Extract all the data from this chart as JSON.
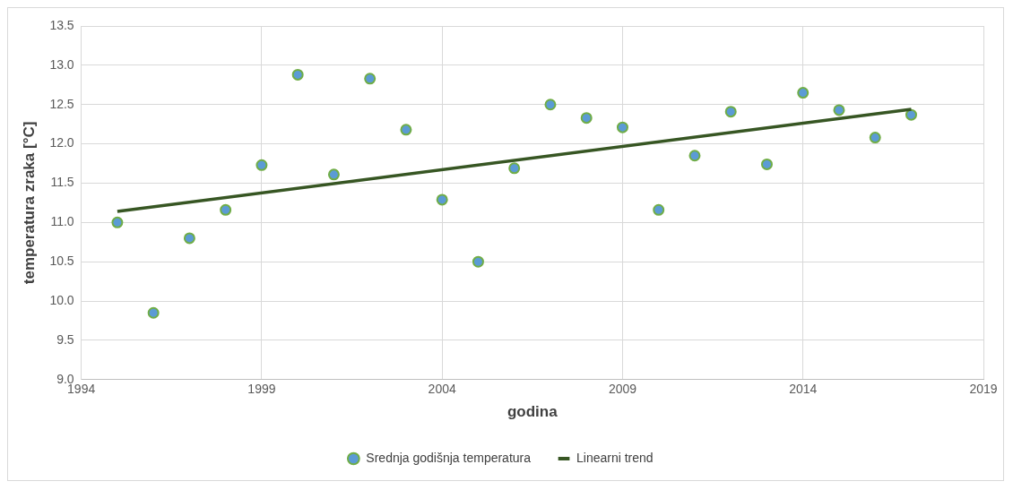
{
  "chart_data": {
    "type": "scatter",
    "xlabel": "godina",
    "ylabel": "temperatura zraka [°C]",
    "xlim": [
      1994,
      2019
    ],
    "xticks": [
      1994,
      1999,
      2004,
      2009,
      2014,
      2019
    ],
    "ylim": [
      9.0,
      13.5
    ],
    "yticks": [
      {
        "value": 9,
        "label": "9.0"
      },
      {
        "value": 9.5,
        "label": "9.5"
      },
      {
        "value": 10,
        "label": "10.0"
      },
      {
        "value": 10.5,
        "label": "10.5"
      },
      {
        "value": 11,
        "label": "11.0"
      },
      {
        "value": 11.5,
        "label": "11.5"
      },
      {
        "value": 12,
        "label": "12.0"
      },
      {
        "value": 12.5,
        "label": "12.5"
      },
      {
        "value": 13,
        "label": "13.0"
      },
      {
        "value": 13.5,
        "label": "13.5"
      }
    ],
    "grid": true,
    "legend": "bottom",
    "series": [
      {
        "name": "Srednja godišnja temperatura",
        "marker": "circle",
        "color": "#70ad47",
        "x": [
          1995,
          1996,
          1997,
          1998,
          1999,
          2000,
          2001,
          2002,
          2003,
          2004,
          2005,
          2006,
          2007,
          2008,
          2009,
          2010,
          2011,
          2012,
          2013,
          2014,
          2015,
          2016,
          2017
        ],
        "values": [
          11.0,
          9.85,
          10.8,
          11.16,
          11.73,
          12.88,
          11.61,
          12.83,
          12.18,
          11.29,
          10.5,
          11.69,
          12.5,
          12.33,
          12.21,
          11.16,
          11.85,
          12.41,
          11.74,
          12.65,
          12.43,
          12.08,
          12.37
        ]
      },
      {
        "name": "Linearni trend",
        "type": "line",
        "color": "#375623",
        "line_style": "solid",
        "x": [
          1995,
          2017
        ],
        "values": [
          11.14,
          12.44
        ]
      }
    ]
  }
}
